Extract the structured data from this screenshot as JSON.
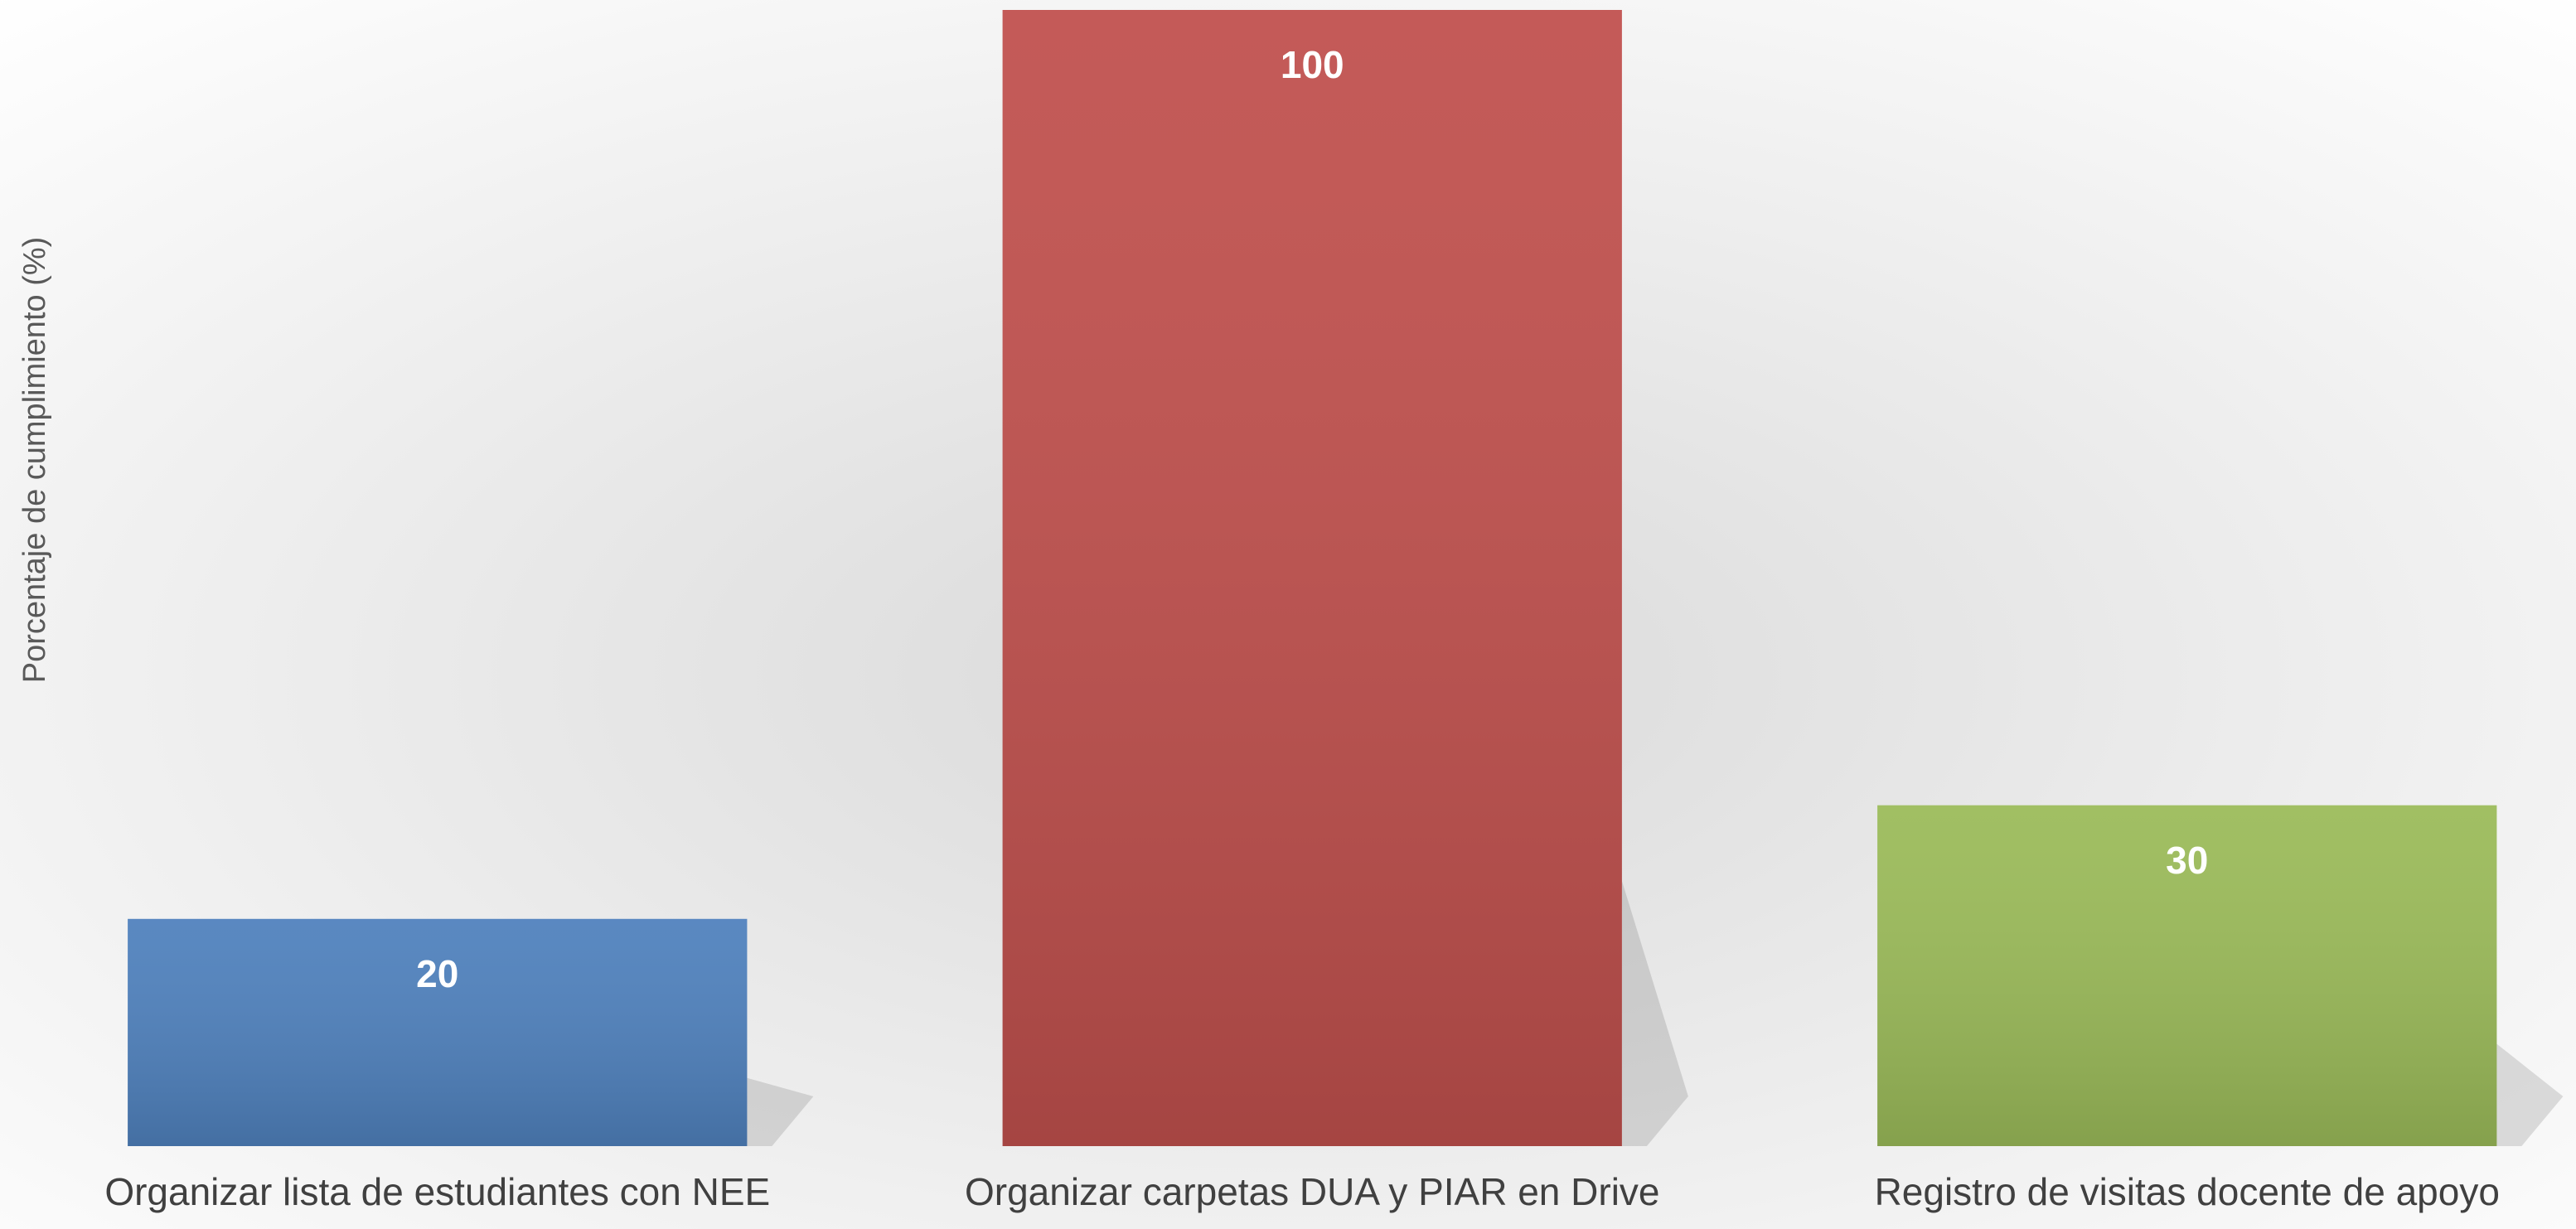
{
  "chart_data": {
    "type": "bar",
    "y_label": "Porcentaje de cumplimiento (%)",
    "categories": [
      "Organizar lista de estudiantes con NEE",
      "Organizar carpetas DUA y PIAR en Drive",
      "Registro de visitas docente de apoyo"
    ],
    "values": [
      20,
      100,
      30
    ],
    "colors": [
      "#4f81bd",
      "#c0504d",
      "#9bbb59"
    ],
    "ylim": [
      0,
      100
    ]
  }
}
